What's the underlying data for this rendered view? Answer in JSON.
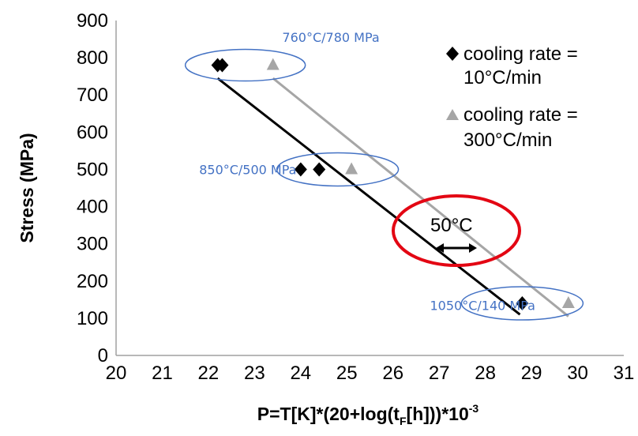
{
  "chart_data": {
    "type": "scatter",
    "xlabel_main": "P=T[K]*(20+log(t",
    "xlabel_sub": "F",
    "xlabel_mid": "[h]))*10",
    "xlabel_sup": "-3",
    "ylabel": "Stress (MPa)",
    "xlim": [
      20,
      31
    ],
    "ylim": [
      0,
      900
    ],
    "xticks": [
      "20",
      "21",
      "22",
      "23",
      "24",
      "25",
      "26",
      "27",
      "28",
      "29",
      "30",
      "31"
    ],
    "yticks": [
      "0",
      "100",
      "200",
      "300",
      "400",
      "500",
      "600",
      "700",
      "800",
      "900"
    ],
    "grid": false,
    "legend_position": "top-right",
    "series": [
      {
        "name_line1": "cooling rate =",
        "name_line2": "10°C/min",
        "marker": "diamond",
        "color": "#000000",
        "points": [
          [
            22.2,
            780
          ],
          [
            22.3,
            780
          ],
          [
            24.0,
            500
          ],
          [
            24.4,
            500
          ],
          [
            28.8,
            140
          ]
        ],
        "trendline": [
          [
            22.2,
            745
          ],
          [
            28.75,
            110
          ]
        ]
      },
      {
        "name_line1": "cooling rate =",
        "name_line2": "300°C/min",
        "marker": "triangle",
        "color": "#a6a6a6",
        "points": [
          [
            23.4,
            780
          ],
          [
            25.1,
            500
          ],
          [
            29.8,
            140
          ]
        ],
        "trendline": [
          [
            23.4,
            745
          ],
          [
            29.8,
            105
          ]
        ]
      }
    ],
    "annotations": [
      {
        "text": "760°C/780 MPa",
        "color": "#4472c4",
        "x": 23.6,
        "y": 843
      },
      {
        "text": "850°C/500 MPa",
        "color": "#4472c4",
        "x": 21.8,
        "y": 487
      },
      {
        "text": "1050°C/140 MPa",
        "color": "#4472c4",
        "x": 26.8,
        "y": 122
      }
    ],
    "shift_label": "50°C",
    "colors": {
      "ellipse": "#4472c4",
      "highlight": "#e30613"
    }
  }
}
